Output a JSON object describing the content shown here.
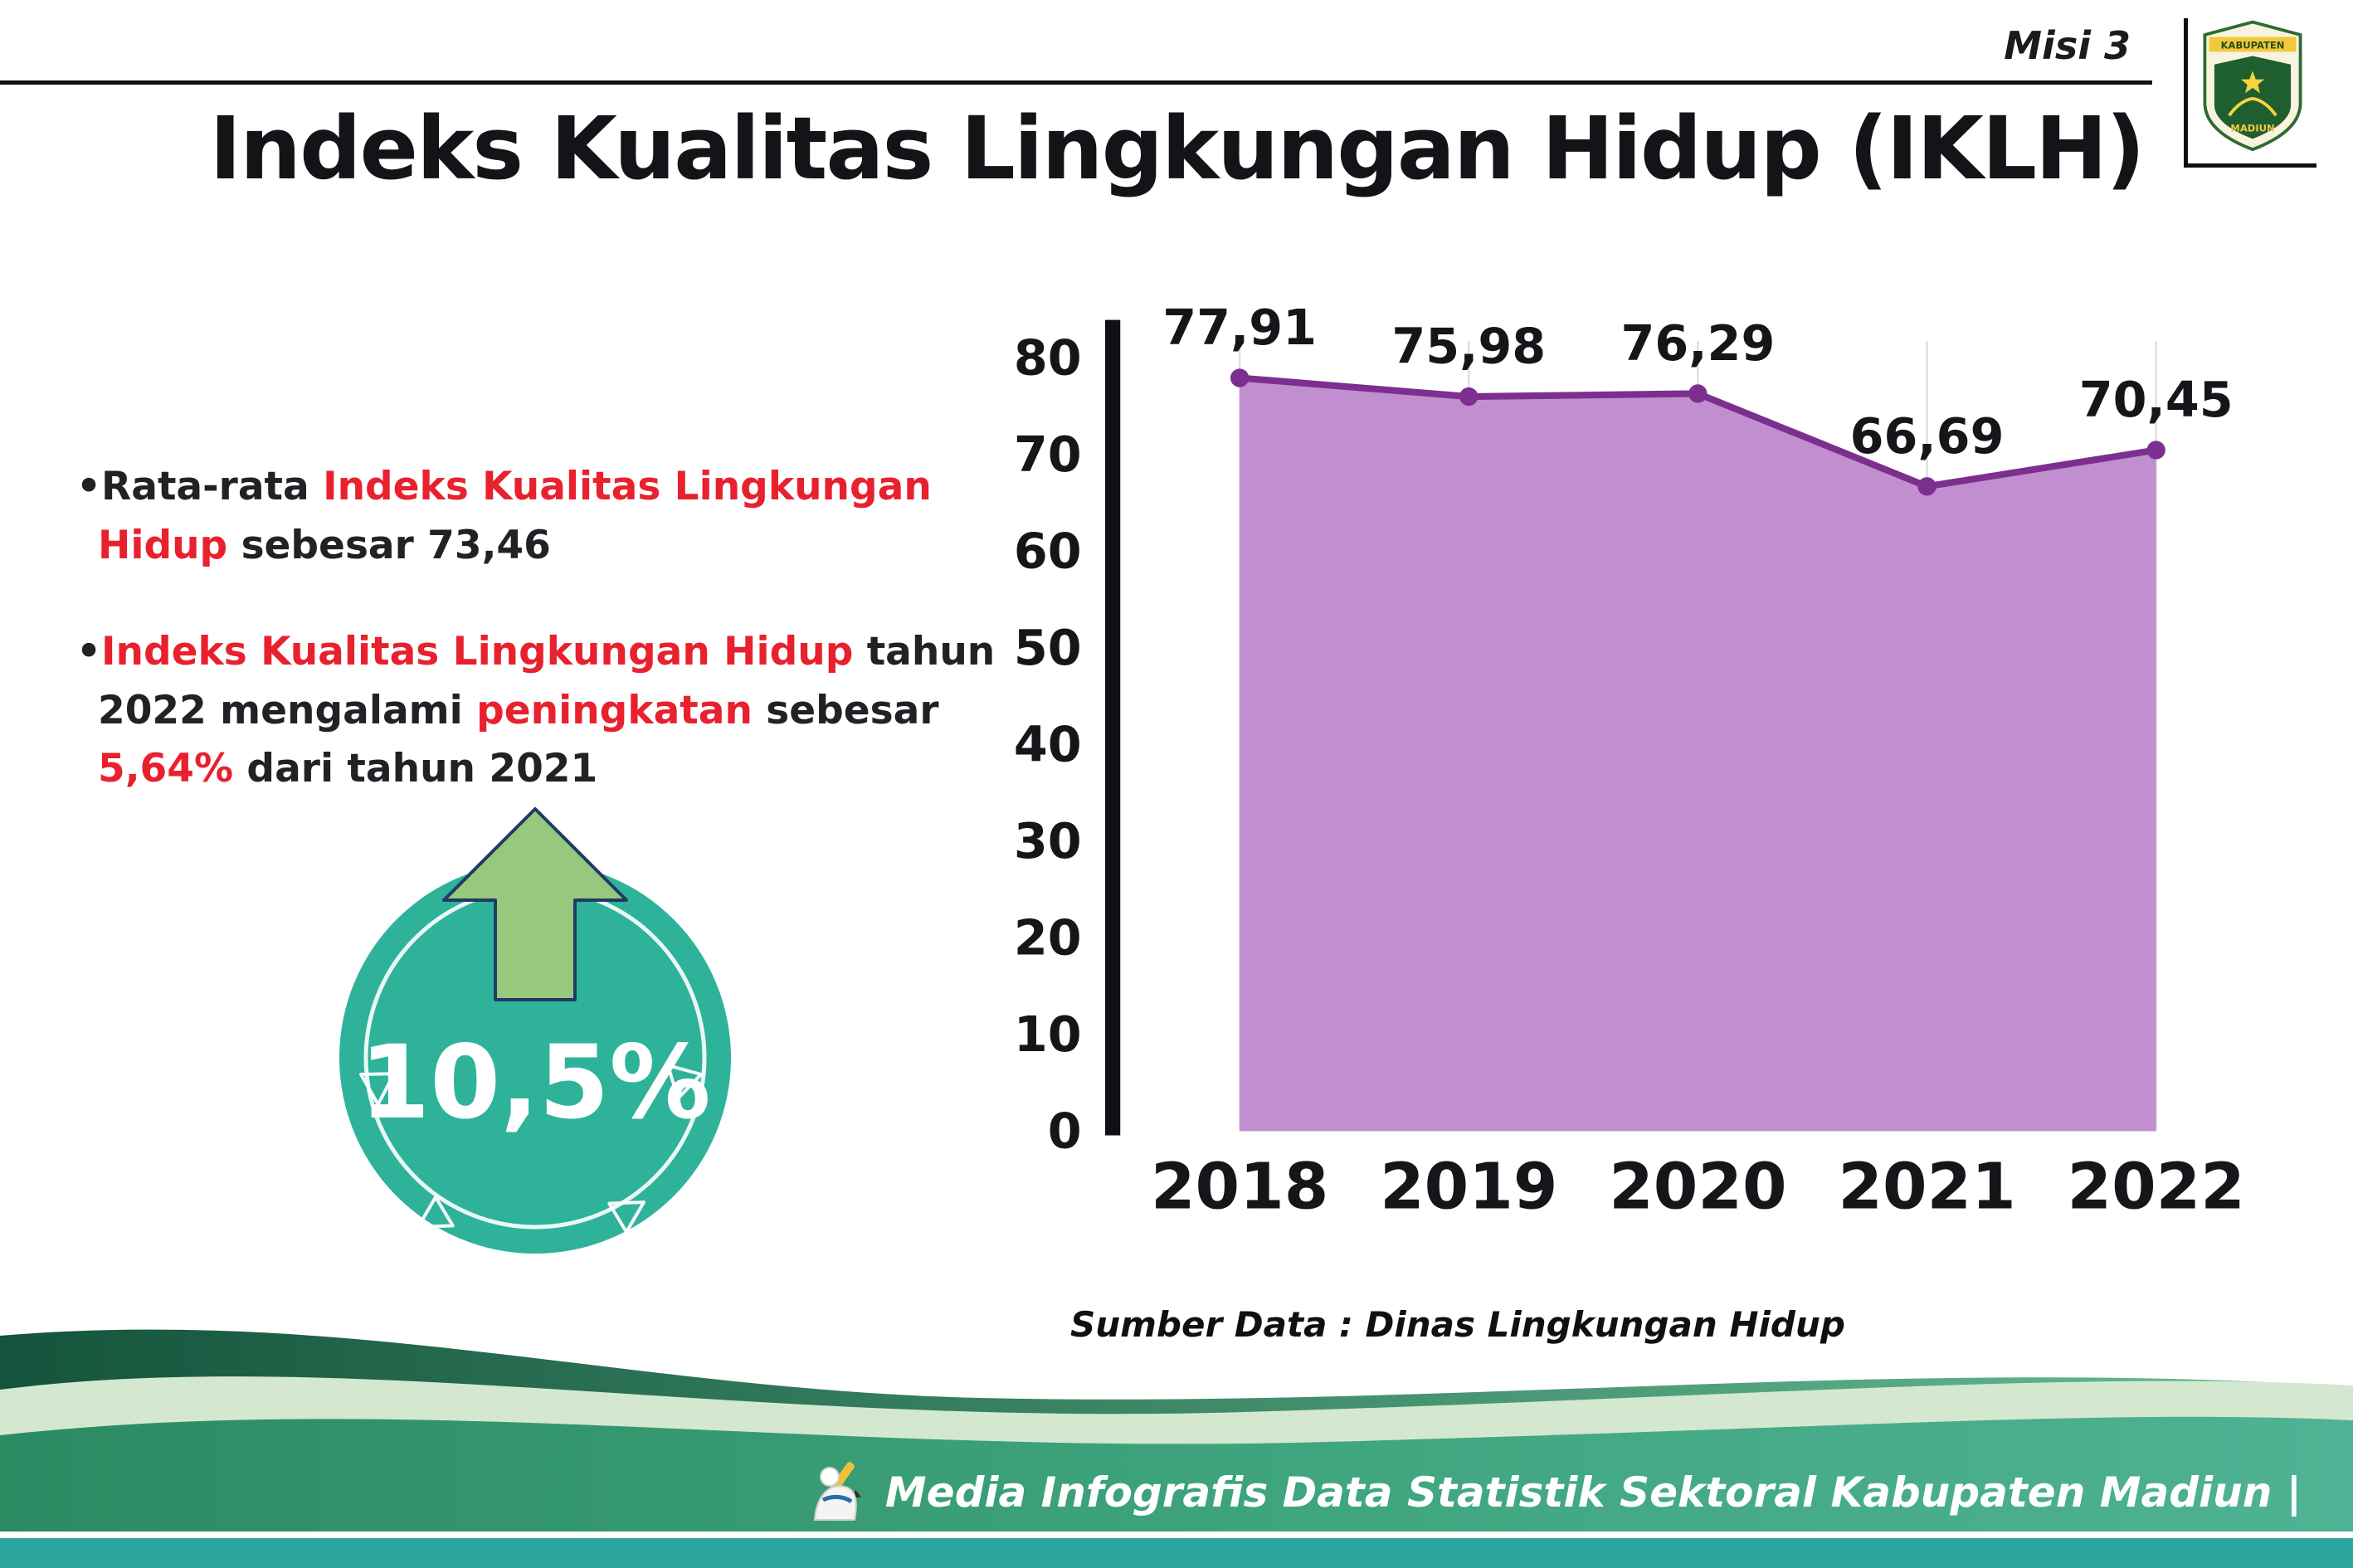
{
  "header": {
    "misi": "Misi 3",
    "title": "Indeks Kualitas Lingkungan Hidup (IKLH)",
    "logo": {
      "top_text": "KABUPATEN",
      "bottom_text": "MADIUN"
    }
  },
  "colors": {
    "red_accent": "#e8212e",
    "text_dark": "#232026",
    "badge_circle": "#2eb39a",
    "badge_arrow": "#96c97e",
    "chart_fill": "#c18fd0",
    "chart_line": "#7c2f8e"
  },
  "bullets": [
    {
      "segments": [
        {
          "text": "Rata-rata ",
          "red": false
        },
        {
          "text": "Indeks Kualitas Lingkungan Hidup",
          "red": true
        },
        {
          "text": " sebesar 73,46",
          "red": false
        }
      ]
    },
    {
      "segments": [
        {
          "text": "Indeks Kualitas Lingkungan Hidup",
          "red": true
        },
        {
          "text": " tahun 2022 mengalami ",
          "red": false
        },
        {
          "text": "peningkatan",
          "red": true
        },
        {
          "text": " sebesar ",
          "red": false
        },
        {
          "text": "5,64%",
          "red": true
        },
        {
          "text": " dari tahun 2021",
          "red": false
        }
      ]
    }
  ],
  "badge": {
    "value": "10,5%"
  },
  "chart_data": {
    "type": "area",
    "title": "Indeks Kualitas Lingkungan Hidup (IKLH)",
    "categories": [
      "2018",
      "2019",
      "2020",
      "2021",
      "2022"
    ],
    "values": [
      77.91,
      75.98,
      76.29,
      66.69,
      70.45
    ],
    "point_labels": [
      "77,91",
      "75,98",
      "76,29",
      "66,69",
      "70,45"
    ],
    "xlabel": "",
    "ylabel": "",
    "ylim": [
      0,
      80
    ],
    "yticks": [
      0,
      10,
      20,
      30,
      40,
      50,
      60,
      70,
      80
    ],
    "grid": "vertical",
    "legend": "none",
    "source": "Sumber Data : Dinas Lingkungan Hidup"
  },
  "footer": {
    "text": "Media Infografis Data Statistik Sektoral Kabupaten Madiun |"
  }
}
